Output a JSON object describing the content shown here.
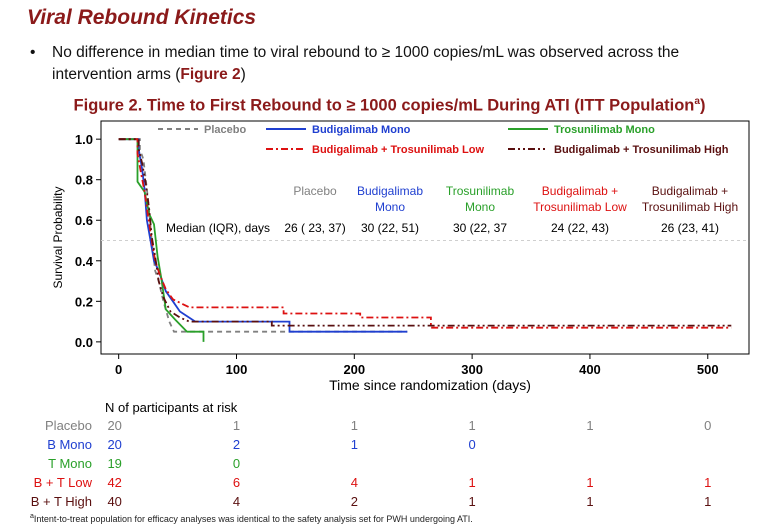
{
  "slide": {
    "title": "Viral Rebound Kinetics",
    "bullet_dot": "•",
    "bullet_text_before": "No difference in median time to viral rebound to ≥ 1000 copies/mL was observed across the intervention arms (",
    "bullet_ref": "Figure 2",
    "bullet_text_after": ")",
    "figure_title": "Figure 2. Time to First Rebound to ≥ 1000 copies/mL During ATI (ITT Population",
    "figure_title_sup": "a",
    "figure_title_close": ")",
    "footnote_sup": "a",
    "footnote": "Intent-to-treat population for efficacy analyses was identical to the safety analysis set for PWH undergoing ATI."
  },
  "chart_data": {
    "type": "line",
    "step": true,
    "xlabel": "Time since randomization (days)",
    "ylabel": "Survival Probability",
    "xlim": [
      -15,
      535
    ],
    "ylim": [
      -0.05,
      1.06
    ],
    "x_ticks": [
      0,
      100,
      200,
      300,
      400,
      500
    ],
    "y_ticks": [
      0.0,
      0.2,
      0.4,
      0.6,
      0.8,
      1.0
    ],
    "y_tick_labels": [
      "0.0",
      "0.2",
      "0.4",
      "0.6",
      "0.8",
      "1.0"
    ],
    "reference_line_y": 0.5,
    "grid": false,
    "legend_position": "top",
    "series": [
      {
        "name": "Placebo",
        "color": "#808080",
        "dash": "5,4",
        "points": [
          [
            0,
            1.0
          ],
          [
            18,
            1.0
          ],
          [
            18,
            0.95
          ],
          [
            21,
            0.9
          ],
          [
            23,
            0.8
          ],
          [
            25,
            0.7
          ],
          [
            28,
            0.5
          ],
          [
            31,
            0.35
          ],
          [
            34,
            0.3
          ],
          [
            38,
            0.2
          ],
          [
            43,
            0.1
          ],
          [
            47,
            0.05
          ],
          [
            245,
            0.05
          ]
        ]
      },
      {
        "name": "Budigalimab Mono",
        "color": "#1f3fd0",
        "dash": "",
        "points": [
          [
            0,
            1.0
          ],
          [
            17,
            1.0
          ],
          [
            17,
            0.95
          ],
          [
            20,
            0.85
          ],
          [
            22,
            0.75
          ],
          [
            24,
            0.6
          ],
          [
            27,
            0.5
          ],
          [
            30,
            0.4
          ],
          [
            34,
            0.35
          ],
          [
            40,
            0.25
          ],
          [
            46,
            0.2
          ],
          [
            52,
            0.15
          ],
          [
            65,
            0.1
          ],
          [
            145,
            0.1
          ],
          [
            145,
            0.05
          ],
          [
            245,
            0.05
          ]
        ]
      },
      {
        "name": "Trosunilimab Mono",
        "color": "#2aa02a",
        "dash": "",
        "points": [
          [
            0,
            1.0
          ],
          [
            16,
            1.0
          ],
          [
            16,
            0.79
          ],
          [
            22,
            0.74
          ],
          [
            26,
            0.63
          ],
          [
            30,
            0.58
          ],
          [
            33,
            0.42
          ],
          [
            36,
            0.32
          ],
          [
            40,
            0.16
          ],
          [
            48,
            0.11
          ],
          [
            58,
            0.05
          ],
          [
            72,
            0.05
          ],
          [
            72,
            0.0
          ]
        ]
      },
      {
        "name": "Budigalimab + Trosunilimab Low",
        "color": "#dd1111",
        "dash": "7,3,2,3",
        "points": [
          [
            0,
            1.0
          ],
          [
            16,
            1.0
          ],
          [
            16,
            0.93
          ],
          [
            19,
            0.83
          ],
          [
            22,
            0.74
          ],
          [
            25,
            0.62
          ],
          [
            28,
            0.5
          ],
          [
            31,
            0.4
          ],
          [
            35,
            0.33
          ],
          [
            40,
            0.26
          ],
          [
            46,
            0.21
          ],
          [
            60,
            0.17
          ],
          [
            140,
            0.17
          ],
          [
            140,
            0.14
          ],
          [
            205,
            0.14
          ],
          [
            205,
            0.12
          ],
          [
            265,
            0.12
          ],
          [
            265,
            0.07
          ],
          [
            520,
            0.07
          ]
        ]
      },
      {
        "name": "Budigalimab + Trosunilimab High",
        "color": "#5a1010",
        "dash": "7,3,2,3,2,3",
        "points": [
          [
            0,
            1.0
          ],
          [
            17,
            1.0
          ],
          [
            17,
            0.95
          ],
          [
            20,
            0.88
          ],
          [
            23,
            0.78
          ],
          [
            26,
            0.65
          ],
          [
            28,
            0.52
          ],
          [
            31,
            0.42
          ],
          [
            34,
            0.3
          ],
          [
            38,
            0.22
          ],
          [
            44,
            0.15
          ],
          [
            52,
            0.12
          ],
          [
            60,
            0.1
          ],
          [
            130,
            0.1
          ],
          [
            130,
            0.08
          ],
          [
            520,
            0.08
          ]
        ]
      }
    ],
    "median_table": {
      "row_label": "Median (IQR), days",
      "columns": [
        {
          "header": [
            "Placebo"
          ],
          "value": "26 ( 23, 37)",
          "color": "#808080"
        },
        {
          "header": [
            "Budigalimab",
            "Mono"
          ],
          "value": "30 (22, 51)",
          "color": "#1f3fd0"
        },
        {
          "header": [
            "Trosunilimab",
            "Mono"
          ],
          "value": "30 (22, 37",
          "color": "#2aa02a"
        },
        {
          "header": [
            "Budigalimab +",
            "Trosunilimab Low"
          ],
          "value": "24 (22, 43)",
          "color": "#dd1111"
        },
        {
          "header": [
            "Budigalimab +",
            "Trosunilimab High"
          ],
          "value": "26 (23, 41)",
          "color": "#5a1010"
        }
      ]
    },
    "at_risk": {
      "title": "N of participants at risk",
      "times": [
        0,
        100,
        200,
        300,
        400,
        500
      ],
      "rows": [
        {
          "label": "Placebo",
          "color": "#808080",
          "values": [
            "20",
            "1",
            "1",
            "1",
            "1",
            "0"
          ]
        },
        {
          "label": "B Mono",
          "color": "#1f3fd0",
          "values": [
            "20",
            "2",
            "1",
            "0",
            "",
            ""
          ]
        },
        {
          "label": "T Mono",
          "color": "#2aa02a",
          "values": [
            "19",
            "0",
            "",
            "",
            "",
            ""
          ]
        },
        {
          "label": "B + T Low",
          "color": "#dd1111",
          "values": [
            "42",
            "6",
            "4",
            "1",
            "1",
            "1"
          ]
        },
        {
          "label": "B + T High",
          "color": "#5a1010",
          "values": [
            "40",
            "4",
            "2",
            "1",
            "1",
            "1"
          ]
        }
      ]
    }
  }
}
